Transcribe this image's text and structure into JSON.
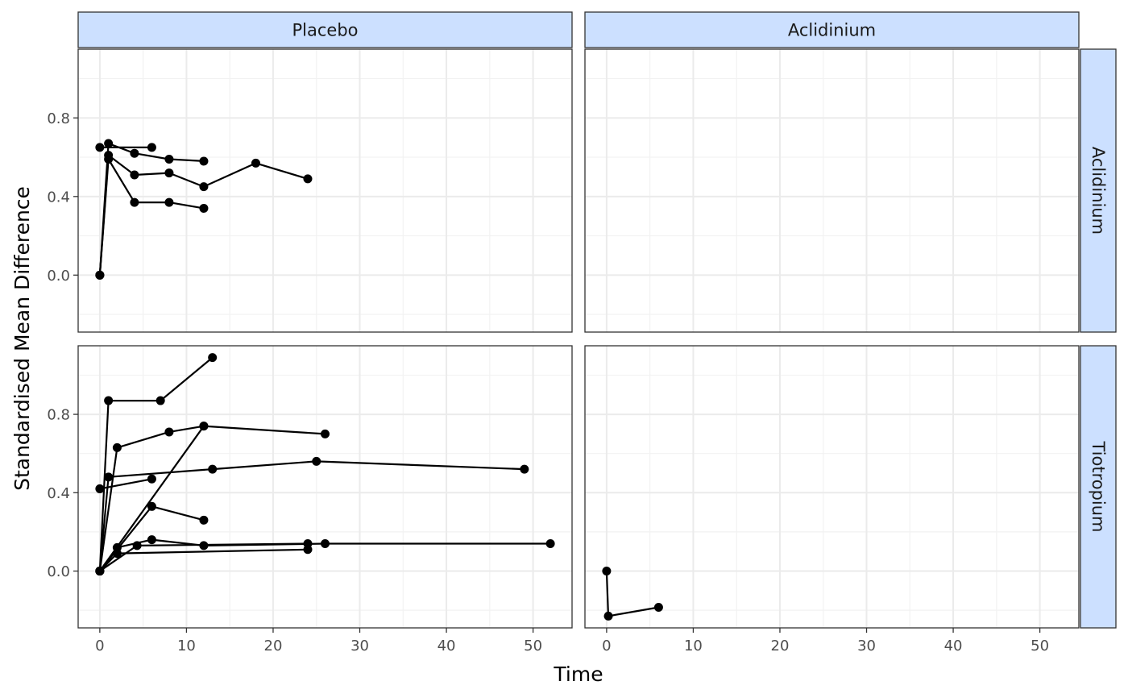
{
  "chart_data": {
    "type": "line",
    "xlabel": "Time",
    "ylabel": "Standardised Mean Difference",
    "facet_columns": [
      "Placebo",
      "Aclidinium"
    ],
    "facet_rows": [
      "Aclidinium",
      "Tiotropium"
    ],
    "xlim": [
      -2.5,
      54.5
    ],
    "x_ticks": [
      0,
      10,
      20,
      30,
      40,
      50
    ],
    "y_ticks": [
      0.0,
      0.4,
      0.8
    ],
    "y_tick_labels": [
      "0.0",
      "0.4",
      "0.8"
    ],
    "rows": [
      {
        "name": "Aclidinium",
        "ylim": [
          -0.29,
          1.15
        ]
      },
      {
        "name": "Tiotropium",
        "ylim": [
          -0.29,
          1.15
        ]
      }
    ],
    "grid": true,
    "marker_color": "#000000",
    "line_color": "#000000",
    "strip_fill": "#cce0ff",
    "panels": [
      {
        "col": "Placebo",
        "row": "Aclidinium",
        "series": [
          {
            "x": [
              0,
              1,
              4,
              8,
              12
            ],
            "y": [
              0,
              0.59,
              0.37,
              0.37,
              0.34
            ]
          },
          {
            "x": [
              0,
              1,
              4,
              8,
              12,
              18,
              24
            ],
            "y": [
              0,
              0.61,
              0.51,
              0.52,
              0.45,
              0.57,
              0.49
            ]
          },
          {
            "x": [
              0,
              1,
              4,
              8,
              12
            ],
            "y": [
              0,
              0.67,
              0.62,
              0.59,
              0.58
            ]
          },
          {
            "x": [
              0,
              6
            ],
            "y": [
              0.65,
              0.65
            ]
          }
        ]
      },
      {
        "col": "Aclidinium",
        "row": "Aclidinium",
        "series": []
      },
      {
        "col": "Placebo",
        "row": "Tiotropium",
        "series": [
          {
            "x": [
              0,
              1,
              7,
              13
            ],
            "y": [
              0,
              0.87,
              0.87,
              1.09
            ]
          },
          {
            "x": [
              0,
              2,
              8,
              12,
              26
            ],
            "y": [
              0,
              0.63,
              0.71,
              0.74,
              0.7
            ]
          },
          {
            "x": [
              0,
              12
            ],
            "y": [
              0,
              0.74
            ]
          },
          {
            "x": [
              0,
              1,
              13,
              25,
              49
            ],
            "y": [
              0,
              0.48,
              0.52,
              0.56,
              0.52
            ]
          },
          {
            "x": [
              0,
              6
            ],
            "y": [
              0.42,
              0.47
            ]
          },
          {
            "x": [
              0,
              6,
              12
            ],
            "y": [
              0,
              0.33,
              0.26
            ]
          },
          {
            "x": [
              0,
              2,
              6,
              12,
              26,
              52
            ],
            "y": [
              0,
              0.12,
              0.16,
              0.13,
              0.14,
              0.14
            ]
          },
          {
            "x": [
              0,
              4.3,
              24
            ],
            "y": [
              0,
              0.13,
              0.14
            ]
          },
          {
            "x": [
              0,
              2,
              24
            ],
            "y": [
              0,
              0.09,
              0.11
            ]
          }
        ]
      },
      {
        "col": "Aclidinium",
        "row": "Tiotropium",
        "series": [
          {
            "x": [
              0,
              0.2,
              6
            ],
            "y": [
              0,
              -0.23,
              -0.185
            ]
          }
        ]
      }
    ]
  }
}
